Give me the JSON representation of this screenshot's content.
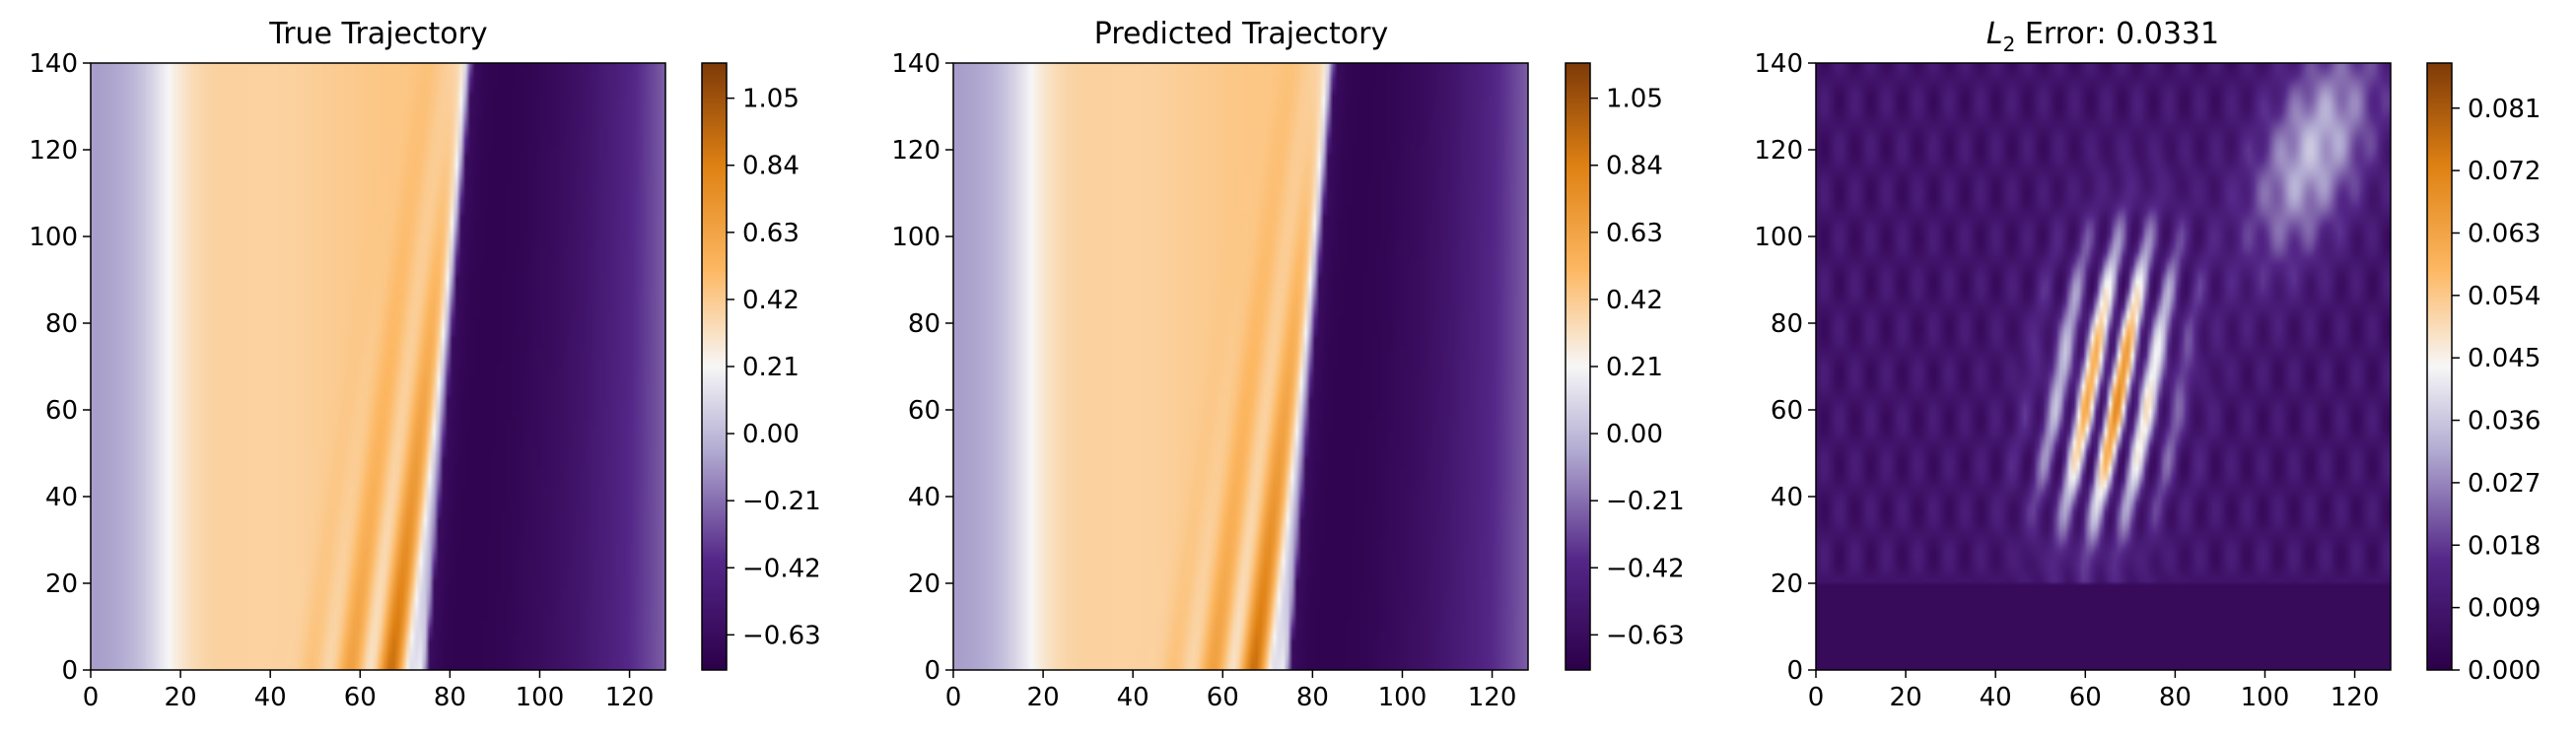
{
  "figure": {
    "palette": {
      "dark_purple": "#2d004b",
      "purple": "#542788",
      "lavender": "#b2abd2",
      "white": "#f7f7f7",
      "peach": "#fdb863",
      "orange": "#e08214",
      "brown": "#7f3b08"
    }
  },
  "chart_data": [
    {
      "type": "heatmap",
      "title": "True Trajectory",
      "xlabel": "",
      "ylabel": "",
      "xlim": [
        0,
        128
      ],
      "ylim": [
        0,
        140
      ],
      "x_ticks": [
        0,
        20,
        40,
        60,
        80,
        100,
        120
      ],
      "y_ticks": [
        0,
        20,
        40,
        60,
        80,
        100,
        120,
        140
      ],
      "colormap": "PuOr_r",
      "color_range": [
        -0.74,
        1.16
      ],
      "colorbar_ticks": [
        "−0.63",
        "−0.42",
        "−0.21",
        "0.00",
        "0.21",
        "0.42",
        "0.63",
        "0.84",
        "1.05"
      ],
      "colorbar_tick_values": [
        -0.63,
        -0.42,
        -0.21,
        0.0,
        0.21,
        0.42,
        0.63,
        0.84,
        1.05
      ],
      "field_description_values": {
        "left_edge_value": -0.1,
        "plateau_value": 0.45,
        "oscillation_band_x": [
          40,
          75
        ],
        "stripe_peak_value": 1.1,
        "shock_x_at_t0": 75,
        "shock_x_at_t140": 85,
        "right_region_min": -0.72,
        "right_edge_value": -0.25
      }
    },
    {
      "type": "heatmap",
      "title": "Predicted Trajectory",
      "xlabel": "",
      "ylabel": "",
      "xlim": [
        0,
        128
      ],
      "ylim": [
        0,
        140
      ],
      "x_ticks": [
        0,
        20,
        40,
        60,
        80,
        100,
        120
      ],
      "y_ticks": [
        0,
        20,
        40,
        60,
        80,
        100,
        120,
        140
      ],
      "colormap": "PuOr_r",
      "color_range": [
        -0.74,
        1.16
      ],
      "colorbar_ticks": [
        "−0.63",
        "−0.42",
        "−0.21",
        "0.00",
        "0.21",
        "0.42",
        "0.63",
        "0.84",
        "1.05"
      ],
      "colorbar_tick_values": [
        -0.63,
        -0.42,
        -0.21,
        0.0,
        0.21,
        0.42,
        0.63,
        0.84,
        1.05
      ],
      "field_description_values": {
        "left_edge_value": -0.1,
        "plateau_value": 0.45,
        "oscillation_band_x": [
          40,
          75
        ],
        "stripe_peak_value": 1.1,
        "shock_x_at_t0": 75,
        "shock_x_at_t140": 85,
        "right_region_min": -0.72,
        "right_edge_value": -0.25
      }
    },
    {
      "type": "heatmap",
      "title_prefix": "L",
      "title_subscript": "2",
      "title_suffix": " Error: 0.0331",
      "xlabel": "",
      "ylabel": "",
      "xlim": [
        0,
        128
      ],
      "ylim": [
        0,
        140
      ],
      "x_ticks": [
        0,
        20,
        40,
        60,
        80,
        100,
        120
      ],
      "y_ticks": [
        0,
        20,
        40,
        60,
        80,
        100,
        120,
        140
      ],
      "colormap": "PuOr_r",
      "color_range": [
        0.0,
        0.0875
      ],
      "colorbar_ticks": [
        "0.000",
        "0.009",
        "0.018",
        "0.027",
        "0.036",
        "0.045",
        "0.054",
        "0.063",
        "0.072",
        "0.081"
      ],
      "colorbar_tick_values": [
        0.0,
        0.009,
        0.018,
        0.027,
        0.036,
        0.045,
        0.054,
        0.063,
        0.072,
        0.081
      ],
      "field_description_values": {
        "background_value": 0.008,
        "low_band_t": [
          0,
          20
        ],
        "error_peak_value": 0.085,
        "error_peak_x": 59,
        "error_peak_t": 65
      }
    }
  ]
}
